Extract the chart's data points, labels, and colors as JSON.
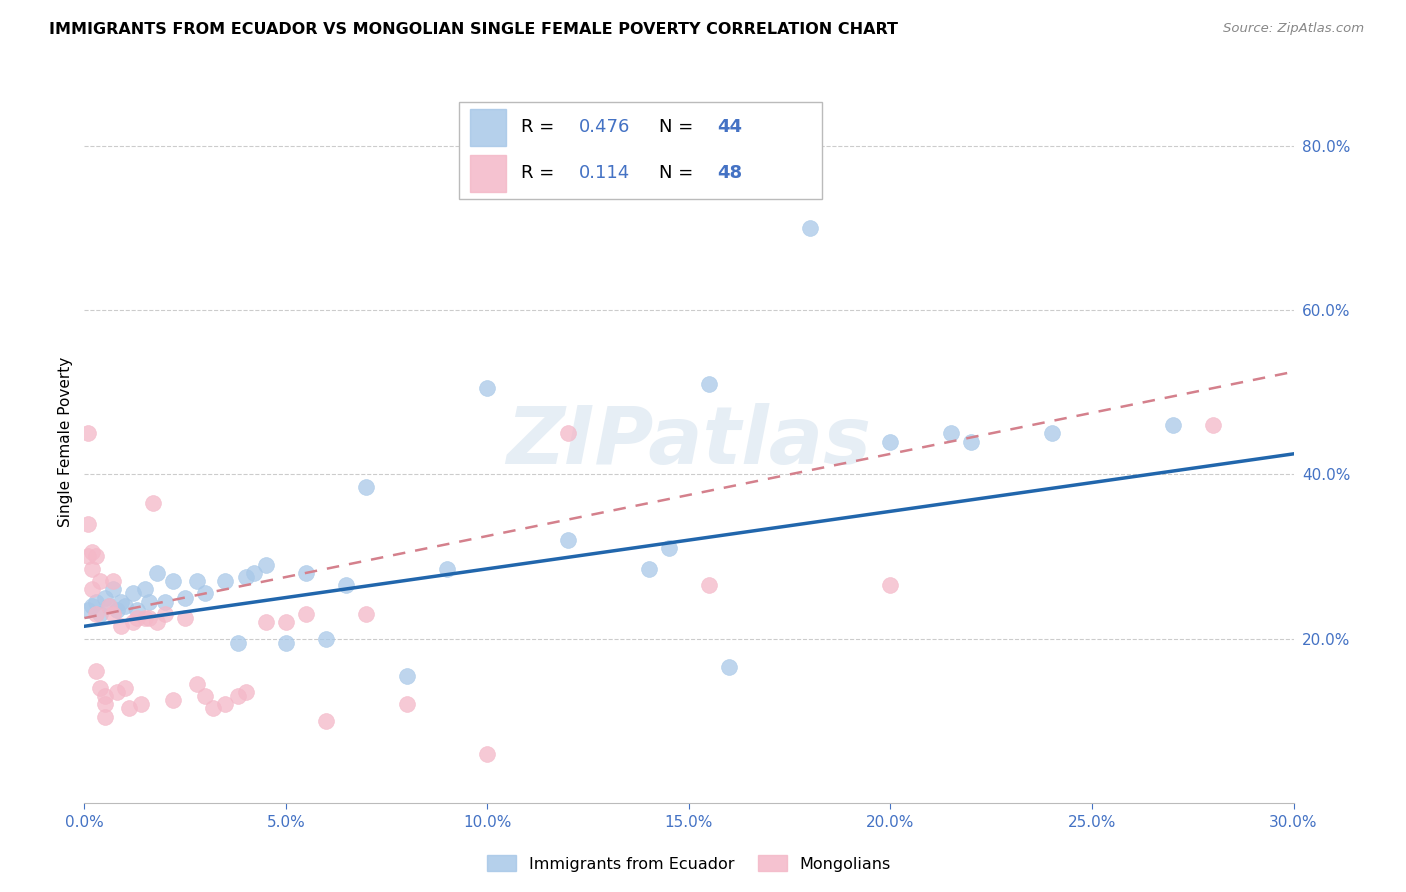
{
  "title": "IMMIGRANTS FROM ECUADOR VS MONGOLIAN SINGLE FEMALE POVERTY CORRELATION CHART",
  "source": "Source: ZipAtlas.com",
  "ylabel": "Single Female Poverty",
  "watermark": "ZIPatlas",
  "legend_entries": [
    {
      "label": "Immigrants from Ecuador",
      "color": "#a8c8e8",
      "R": "0.476",
      "N": "44"
    },
    {
      "label": "Mongolians",
      "color": "#f4b8c8",
      "R": "0.114",
      "N": "48"
    }
  ],
  "xlim": [
    0.0,
    0.3
  ],
  "ylim": [
    0.0,
    0.88
  ],
  "xticks": [
    0.0,
    0.05,
    0.1,
    0.15,
    0.2,
    0.25,
    0.3
  ],
  "yticks_right": [
    0.2,
    0.4,
    0.6,
    0.8
  ],
  "ecuador_color": "#a8c8e8",
  "mongolia_color": "#f4b8c8",
  "trend_ecuador_color": "#2166ac",
  "trend_mongolia_color": "#d4808c",
  "ecuador_x": [
    0.001,
    0.002,
    0.003,
    0.004,
    0.005,
    0.006,
    0.007,
    0.008,
    0.009,
    0.01,
    0.012,
    0.013,
    0.015,
    0.016,
    0.018,
    0.02,
    0.022,
    0.025,
    0.028,
    0.03,
    0.035,
    0.038,
    0.04,
    0.042,
    0.045,
    0.05,
    0.055,
    0.06,
    0.065,
    0.07,
    0.08,
    0.09,
    0.1,
    0.12,
    0.14,
    0.16,
    0.18,
    0.2,
    0.22,
    0.24,
    0.145,
    0.155,
    0.215,
    0.27
  ],
  "ecuador_y": [
    0.235,
    0.24,
    0.245,
    0.23,
    0.25,
    0.24,
    0.26,
    0.235,
    0.245,
    0.24,
    0.255,
    0.235,
    0.26,
    0.245,
    0.28,
    0.245,
    0.27,
    0.25,
    0.27,
    0.255,
    0.27,
    0.195,
    0.275,
    0.28,
    0.29,
    0.195,
    0.28,
    0.2,
    0.265,
    0.385,
    0.155,
    0.285,
    0.505,
    0.32,
    0.285,
    0.165,
    0.7,
    0.44,
    0.44,
    0.45,
    0.31,
    0.51,
    0.45,
    0.46
  ],
  "mongolia_x": [
    0.001,
    0.001,
    0.001,
    0.002,
    0.002,
    0.002,
    0.003,
    0.003,
    0.003,
    0.004,
    0.004,
    0.005,
    0.005,
    0.005,
    0.006,
    0.007,
    0.007,
    0.008,
    0.009,
    0.01,
    0.011,
    0.012,
    0.013,
    0.014,
    0.015,
    0.016,
    0.017,
    0.018,
    0.02,
    0.022,
    0.025,
    0.028,
    0.03,
    0.032,
    0.035,
    0.038,
    0.04,
    0.045,
    0.05,
    0.055,
    0.06,
    0.07,
    0.08,
    0.1,
    0.12,
    0.155,
    0.2,
    0.28
  ],
  "mongolia_y": [
    0.45,
    0.34,
    0.3,
    0.285,
    0.26,
    0.305,
    0.3,
    0.23,
    0.16,
    0.27,
    0.14,
    0.13,
    0.12,
    0.105,
    0.24,
    0.23,
    0.27,
    0.135,
    0.215,
    0.14,
    0.115,
    0.22,
    0.225,
    0.12,
    0.225,
    0.225,
    0.365,
    0.22,
    0.23,
    0.125,
    0.225,
    0.145,
    0.13,
    0.115,
    0.12,
    0.13,
    0.135,
    0.22,
    0.22,
    0.23,
    0.1,
    0.23,
    0.12,
    0.06,
    0.45,
    0.265,
    0.265,
    0.46
  ]
}
